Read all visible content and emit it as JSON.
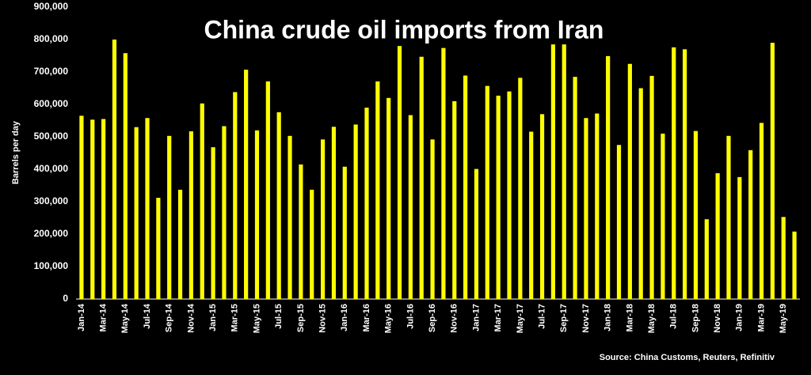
{
  "chart_data": {
    "type": "bar",
    "title": "China crude oil imports from Iran",
    "y_label": "Barrels per day",
    "source": "Source: China Customs, Reuters, Refinitiv",
    "categories": [
      "Jan-14",
      null,
      "Mar-14",
      null,
      "May-14",
      null,
      "Jul-14",
      null,
      "Sep-14",
      null,
      "Nov-14",
      null,
      "Jan-15",
      null,
      "Mar-15",
      null,
      "May-15",
      null,
      "Jul-15",
      null,
      "Sep-15",
      null,
      "Nov-15",
      null,
      "Jan-16",
      null,
      "Mar-16",
      null,
      "May-16",
      null,
      "Jul-16",
      null,
      "Sep-16",
      null,
      "Nov-16",
      null,
      "Jan-17",
      null,
      "Mar-17",
      null,
      "May-17",
      null,
      "Jul-17",
      null,
      "Sep-17",
      null,
      "Nov-17",
      null,
      "Jan-18",
      null,
      "Mar-18",
      null,
      "May-18",
      null,
      "Jul-18",
      null,
      "Sep-18",
      null,
      "Nov-18",
      null,
      "Jan-19",
      null,
      "Mar-19",
      null,
      "May-19",
      null
    ],
    "values": [
      565000,
      553000,
      555000,
      800000,
      758000,
      530000,
      558000,
      312000,
      503000,
      337000,
      517000,
      603000,
      468000,
      533000,
      638000,
      707000,
      520000,
      671000,
      576000,
      503000,
      415000,
      337000,
      492000,
      531000,
      408000,
      538000,
      590000,
      671000,
      620000,
      780000,
      567000,
      747000,
      492000,
      774000,
      610000,
      689000,
      401000,
      657000,
      627000,
      640000,
      682000,
      516000,
      570000,
      785000,
      785000,
      685000,
      558000,
      572000,
      749000,
      475000,
      725000,
      650000,
      688000,
      510000,
      776000,
      770000,
      518000,
      246000,
      388000,
      503000,
      376000,
      459000,
      543000,
      790000,
      253000,
      208000
    ],
    "color": "#ffff00",
    "ylim": [
      0,
      900000
    ],
    "yticks": [
      0,
      {
        "value": 100000,
        "label": "100,000"
      },
      {
        "value": 200000,
        "label": "200,000"
      },
      {
        "value": 300000,
        "label": "300,000"
      },
      {
        "value": 400000,
        "label": "400,000"
      },
      {
        "value": 500000,
        "label": "500,000"
      },
      {
        "value": 600000,
        "label": "600,000"
      },
      {
        "value": 700000,
        "label": "700,000"
      },
      {
        "value": 800000,
        "label": "800,000"
      },
      {
        "value": 900000,
        "label": "900,000"
      }
    ],
    "grid": false
  }
}
